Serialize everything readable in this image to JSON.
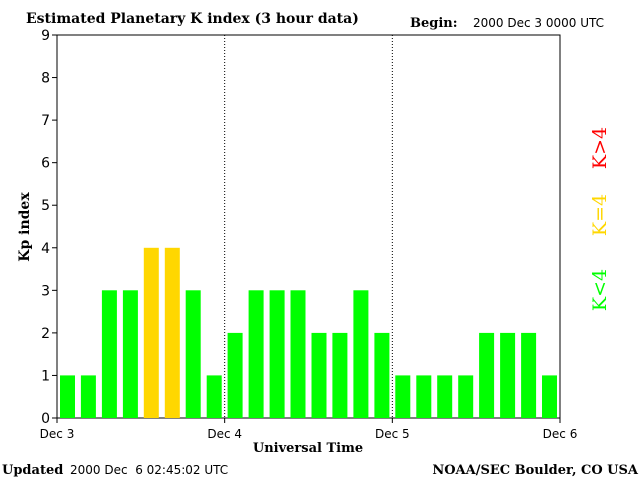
{
  "header": {
    "title": "Estimated Planetary K index (3 hour data)",
    "begin_label": "Begin:",
    "begin_value": "2000 Dec 3 0000 UTC"
  },
  "footer": {
    "updated_label": "Updated",
    "updated_value": "2000 Dec  6 02:45:02 UTC",
    "credit": "NOAA/SEC Boulder, CO USA"
  },
  "legend": [
    {
      "text": "K>4",
      "color": "#ff0000"
    },
    {
      "text": "K=4",
      "color": "#ffd700"
    },
    {
      "text": "K<4",
      "color": "#00ff00"
    }
  ],
  "chart_data": {
    "type": "bar",
    "title": "Estimated Planetary K index (3 hour data)",
    "xlabel": "Universal Time",
    "ylabel": "Kp index",
    "ylim": [
      0,
      9
    ],
    "yticks": [
      0,
      1,
      2,
      3,
      4,
      5,
      6,
      7,
      8,
      9
    ],
    "xticks": [
      "Dec 3",
      "Dec 4",
      "Dec 5",
      "Dec 6"
    ],
    "bar_interval_hours": 3,
    "day_separators": "dotted",
    "values": [
      1,
      1,
      3,
      3,
      4,
      4,
      3,
      1,
      2,
      3,
      3,
      3,
      2,
      2,
      3,
      2,
      1,
      1,
      1,
      1,
      2,
      2,
      2,
      1
    ],
    "colors": {
      "below_4": "#00ff00",
      "equal_4": "#ffd700",
      "above_4": "#ff0000"
    }
  }
}
